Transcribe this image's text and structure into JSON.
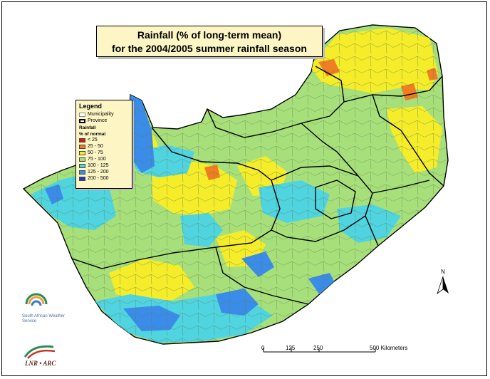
{
  "title": {
    "line1": "Rainfall (% of long-term mean)",
    "line2": "for the 2004/2005 summer rainfall season"
  },
  "legend": {
    "title": "Legend",
    "municipality": "Municipality",
    "province": "Province",
    "rainfall_label": "Rainfall",
    "percent_label": "% of normal",
    "classes": [
      {
        "label": "< 25",
        "color": "#d7191c"
      },
      {
        "label": "25 - 50",
        "color": "#f07d22"
      },
      {
        "label": "50 - 75",
        "color": "#f5ec2a"
      },
      {
        "label": "75 - 100",
        "color": "#a7e07b"
      },
      {
        "label": "100 - 125",
        "color": "#4fd4e0"
      },
      {
        "label": "125 - 200",
        "color": "#3a8ce8"
      },
      {
        "label": "200 - 500",
        "color": "#2433d6"
      }
    ]
  },
  "north_arrow": {
    "label": "N"
  },
  "scale_bar": {
    "ticks": [
      "0",
      "125",
      "250",
      "500 Kilometers"
    ]
  },
  "logos": {
    "weather_service": "South African Weather Service",
    "lnr_arc": "LNR • ARC"
  },
  "colors": {
    "land_base": "#a7e07b",
    "dry": "#f5ec2a",
    "very_dry": "#f07d22",
    "wet": "#4fd4e0",
    "very_wet": "#3a8ce8",
    "extreme_wet": "#2433d6",
    "title_bg": "#fdf6c4"
  }
}
